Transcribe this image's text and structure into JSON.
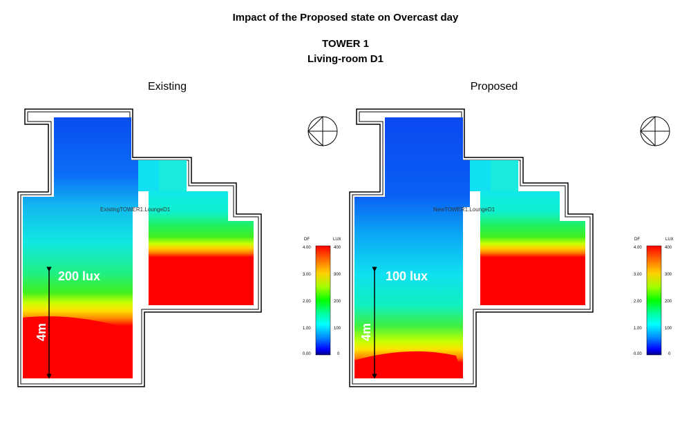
{
  "title": "Impact of the Proposed state on Overcast day",
  "tower": "TOWER 1",
  "room": "Living-room D1",
  "panels": [
    {
      "heading": "Existing",
      "room_label": "ExistingTOWER1.LoungeD1",
      "lux_label": "200 lux",
      "depth_label": "4m"
    },
    {
      "heading": "Proposed",
      "room_label": "NewTOWER1.LoungeD1",
      "lux_label": "100 lux",
      "depth_label": "4m"
    }
  ],
  "legend": {
    "left_header": "DF",
    "right_header": "LUX",
    "df_ticks": [
      "4.00",
      "3.00",
      "2.00",
      "1.00",
      "0.00"
    ],
    "lux_ticks": [
      "400",
      "300",
      "200",
      "100",
      "0"
    ]
  },
  "colors": {
    "scale": [
      "#ff0000",
      "#ffd000",
      "#00ff00",
      "#00ffff",
      "#0000ff",
      "#000080"
    ]
  },
  "icons": [
    "compass-icon"
  ]
}
